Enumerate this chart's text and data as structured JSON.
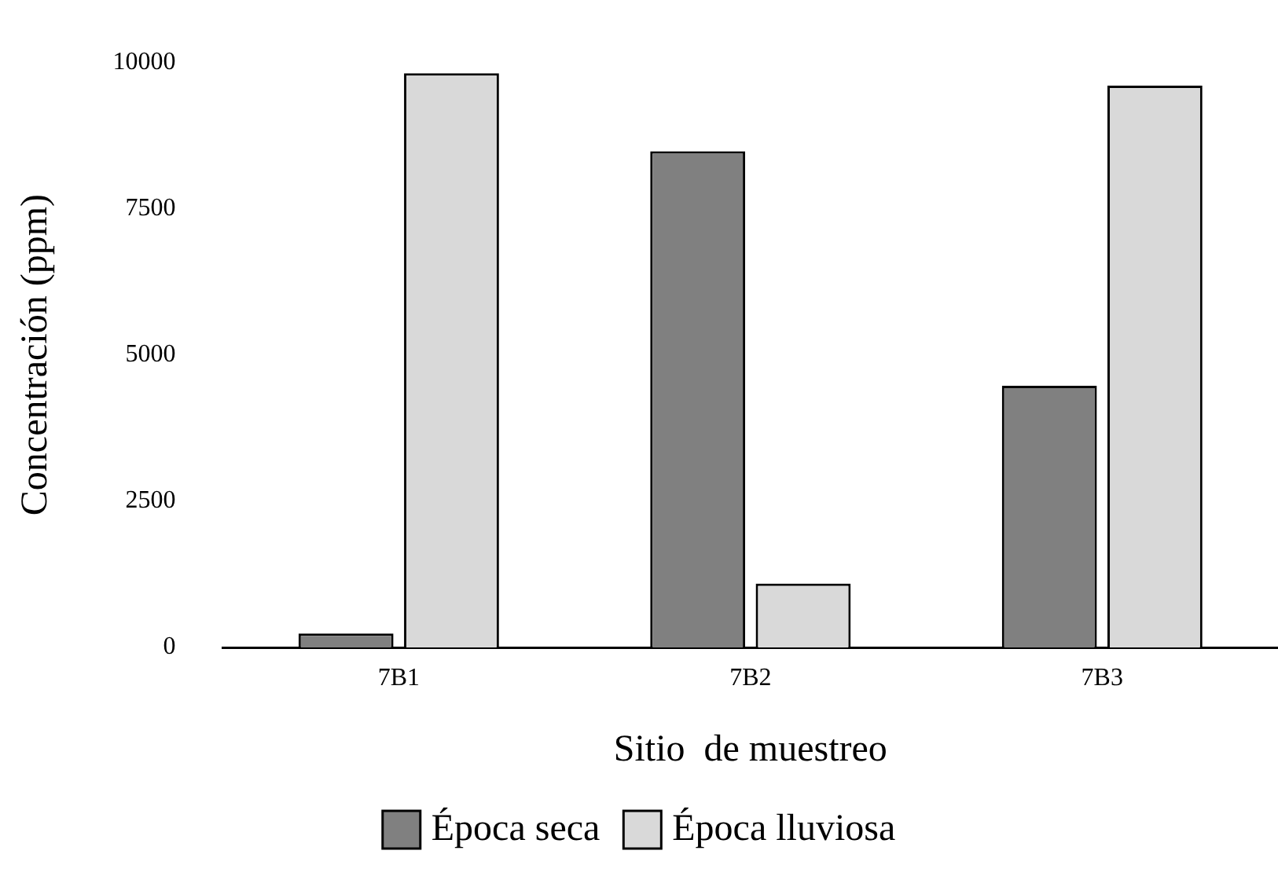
{
  "chart_data": {
    "type": "bar",
    "xlabel": "Sitio  de muestreo",
    "ylabel": "Concentración (ppm)",
    "categories": [
      "7B1",
      "7B2",
      "7B3"
    ],
    "series": [
      {
        "name": "Época seca",
        "color": "#808080",
        "values": [
          240,
          8480,
          4470
        ]
      },
      {
        "name": "Época lluviosa",
        "color": "#d9d9d9",
        "values": [
          9810,
          1090,
          9600
        ]
      }
    ],
    "ylim": [
      0,
      10000
    ],
    "yticks": [
      0,
      2500,
      5000,
      7500,
      10000
    ],
    "grid": false,
    "legend": "bottom"
  }
}
